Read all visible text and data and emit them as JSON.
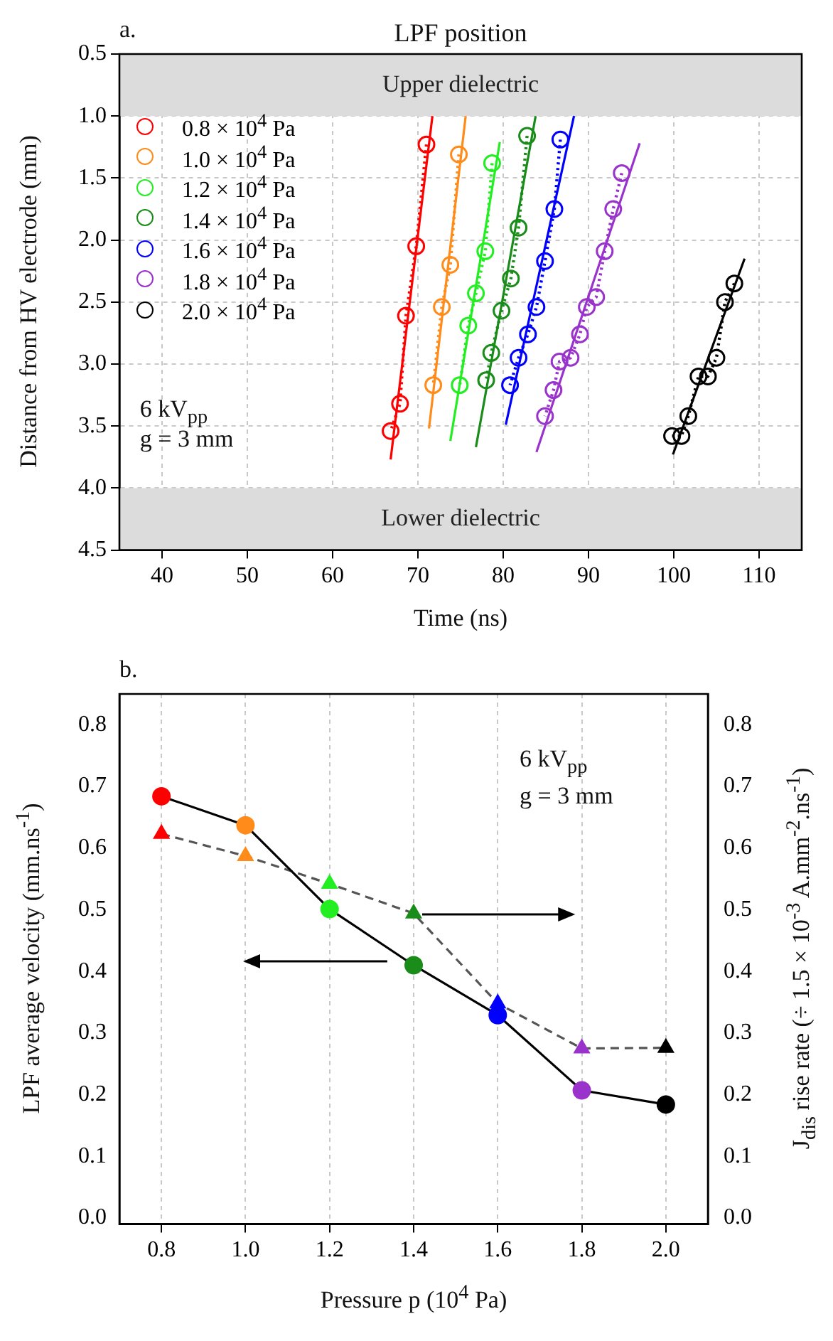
{
  "chart_data": [
    {
      "type": "line",
      "title": "LPF position",
      "xlabel": "Time (ns)",
      "ylabel": "Distance from HV electrode (mm)",
      "xlim": [
        35,
        115
      ],
      "xticks": [
        40,
        50,
        60,
        70,
        80,
        90,
        100,
        110
      ],
      "ylim": [
        4.5,
        0.5
      ],
      "yticks": [
        0.5,
        {
          "value": 1,
          "label": "1.0"
        },
        1.5,
        {
          "value": 2,
          "label": "2.0"
        },
        2.5,
        {
          "value": 3,
          "label": "3.0"
        },
        3.5,
        {
          "value": 4,
          "label": "4.0"
        },
        4.5
      ],
      "grid": true,
      "legend": "top left",
      "bands": [
        {
          "axis": "y",
          "from": 0.5,
          "to": 1.0,
          "label": "Upper dielectric",
          "color": "#dcdcdc"
        },
        {
          "axis": "y",
          "from": 4.0,
          "to": 4.5,
          "label": "Lower dielectric",
          "color": "#dcdcdc"
        }
      ],
      "annotations": [
        "a.",
        "6 kV$_{pp}$",
        "g = 3 mm"
      ],
      "series": [
        {
          "name": "0.8 × 10$^{4}$ Pa",
          "color": "#ff0000",
          "marker": "circle",
          "line_style": "dotted",
          "x": [
            71.0,
            69.8,
            68.6,
            67.9,
            66.8
          ],
          "values": [
            1.23,
            2.05,
            2.61,
            3.32,
            3.54
          ]
        },
        {
          "name": "1.0 × 10$^{4}$ Pa",
          "color": "#ff8c1a",
          "marker": "circle",
          "line_style": "dotted",
          "x": [
            74.8,
            73.8,
            72.8,
            71.8
          ],
          "values": [
            1.31,
            2.2,
            2.54,
            3.17
          ]
        },
        {
          "name": "1.2 × 10$^{4}$ Pa",
          "color": "#22ee22",
          "marker": "circle",
          "line_style": "dotted",
          "x": [
            78.7,
            77.9,
            76.8,
            75.9,
            74.9
          ],
          "values": [
            1.38,
            2.09,
            2.43,
            2.69,
            3.17
          ]
        },
        {
          "name": "1.4 × 10$^{4}$ Pa",
          "color": "#1a8c1a",
          "marker": "circle",
          "line_style": "dotted",
          "x": [
            82.8,
            81.8,
            80.9,
            79.8,
            78.6,
            78.0
          ],
          "values": [
            1.16,
            1.9,
            2.31,
            2.57,
            2.91,
            3.13
          ]
        },
        {
          "name": "1.6 × 10$^{4}$ Pa",
          "color": "#0000ff",
          "marker": "circle",
          "line_style": "dotted",
          "x": [
            86.7,
            86.0,
            84.9,
            83.9,
            82.9,
            81.8,
            80.8
          ],
          "values": [
            1.19,
            1.75,
            2.17,
            2.54,
            2.76,
            2.95,
            3.17
          ]
        },
        {
          "name": "1.8 × 10$^{4}$ Pa",
          "color": "#9933cc",
          "marker": "circle",
          "line_style": "dotted",
          "x": [
            93.9,
            92.9,
            91.9,
            90.9,
            89.8,
            89.0,
            87.9,
            86.6,
            85.9,
            84.9
          ],
          "values": [
            1.46,
            1.75,
            2.09,
            2.46,
            2.54,
            2.76,
            2.95,
            2.98,
            3.21,
            3.42
          ]
        },
        {
          "name": "2.0 × 10$^{4}$ Pa",
          "color": "#000000",
          "marker": "circle",
          "line_style": "dotted",
          "x": [
            107.1,
            106.0,
            105.0,
            104.0,
            102.9,
            101.7,
            100.9,
            99.8
          ],
          "values": [
            2.35,
            2.5,
            2.95,
            3.1,
            3.1,
            3.42,
            3.58,
            3.58
          ]
        },
        {
          "color": "#ff0000",
          "marker": "none",
          "line_style": "solid",
          "x": [
            71.7,
            66.8
          ],
          "values": [
            1.0,
            3.77
          ]
        },
        {
          "color": "#ff8c1a",
          "marker": "none",
          "line_style": "solid",
          "x": [
            75.6,
            71.3
          ],
          "values": [
            1.0,
            3.52
          ]
        },
        {
          "color": "#22ee22",
          "marker": "none",
          "line_style": "solid",
          "x": [
            79.6,
            73.8
          ],
          "values": [
            1.21,
            3.62
          ]
        },
        {
          "color": "#1a8c1a",
          "marker": "none",
          "line_style": "solid",
          "x": [
            83.8,
            76.8
          ],
          "values": [
            1.0,
            3.67
          ]
        },
        {
          "color": "#0000ff",
          "marker": "none",
          "line_style": "solid",
          "x": [
            88.3,
            80.3
          ],
          "values": [
            1.0,
            3.49
          ]
        },
        {
          "color": "#9933cc",
          "marker": "none",
          "line_style": "solid",
          "x": [
            96.0,
            83.9
          ],
          "values": [
            1.22,
            3.71
          ]
        },
        {
          "color": "#000000",
          "marker": "none",
          "line_style": "solid",
          "x": [
            108.3,
            99.9
          ],
          "values": [
            2.15,
            3.73
          ]
        }
      ]
    },
    {
      "type": "line",
      "xlabel": "Pressure p (10$^{4}$ Pa)",
      "ylabel": "LPF average velocity (mm.ns$^{-1}$)",
      "y2label": "J$_{dis}$ rise rate (÷ 1.5 × 10$^{-3}$ A.mm$^{-2}$.ns$^{-1}$)",
      "x": [
        0.8,
        1.0,
        1.2,
        1.4,
        1.6,
        1.8,
        2.0
      ],
      "xlim": [
        0.7,
        2.1
      ],
      "xticks": [
        0.8,
        {
          "value": 1,
          "label": "1.0"
        },
        1.2,
        1.4,
        1.6,
        1.8,
        {
          "value": 2,
          "label": "2.0"
        }
      ],
      "ylim": [
        -0.01,
        0.85
      ],
      "yticks": [
        {
          "value": 0,
          "label": "0.0"
        },
        0.1,
        0.2,
        0.3,
        0.4,
        0.5,
        0.6,
        0.7,
        0.8
      ],
      "y2lim": [
        -0.01,
        0.85
      ],
      "y2ticks": [
        {
          "value": 0,
          "label": "0.0"
        },
        0.1,
        0.2,
        0.3,
        0.4,
        0.5,
        0.6,
        0.7,
        0.8
      ],
      "grid": "x",
      "annotations": [
        "b.",
        "6 kV$_{pp}$",
        "g = 3 mm"
      ],
      "series": [
        {
          "color": "#000000",
          "marker": "circle",
          "line_style": "solid",
          "colors": [
            "#ff0000",
            "#ff8c1a",
            "#22ee22",
            "#1a8c1a",
            "#0000ff",
            "#9933cc",
            "#000000"
          ],
          "values": [
            0.684,
            0.637,
            0.501,
            0.41,
            0.329,
            0.207,
            0.184
          ]
        },
        {
          "color": "#555555",
          "marker": "triangle",
          "line_style": "dashed",
          "axis": "y2",
          "colors": [
            "#ff0000",
            "#ff8c1a",
            "#22ee22",
            "#1a8c1a",
            "#0000ff",
            "#9933cc",
            "#000000"
          ],
          "values": [
            0.623,
            0.587,
            0.542,
            0.494,
            0.348,
            0.275,
            0.276
          ]
        }
      ]
    }
  ]
}
